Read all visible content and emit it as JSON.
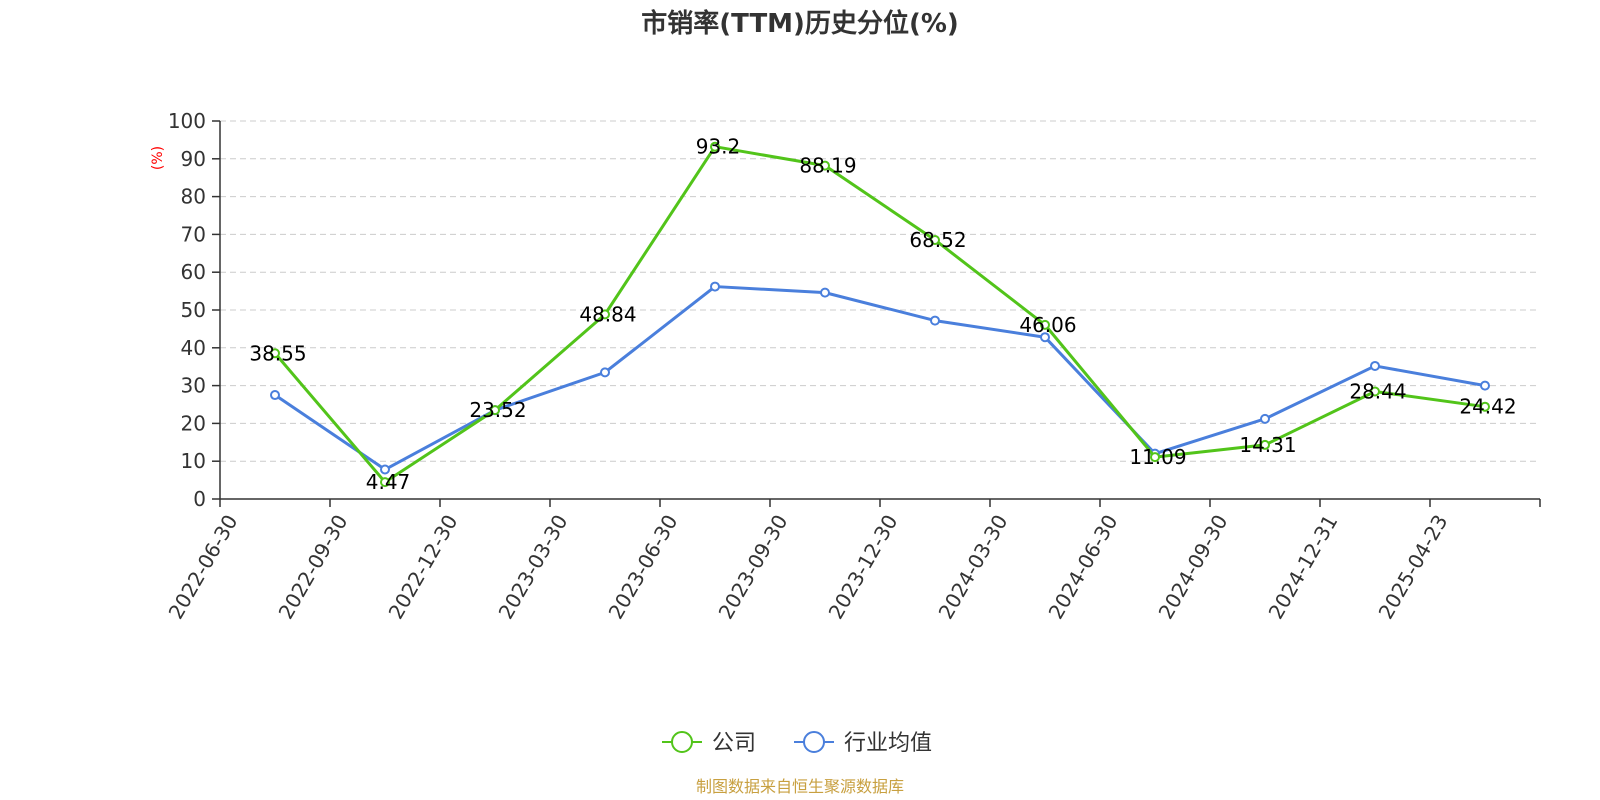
{
  "chart_data": {
    "type": "line",
    "title": "市销率(TTM)历史分位(%)",
    "ylabel": "(%)",
    "xlabel": "",
    "ylim": [
      0,
      100
    ],
    "yticks": [
      0,
      10,
      20,
      30,
      40,
      50,
      60,
      70,
      80,
      90,
      100
    ],
    "grid": true,
    "legend_position": "bottom-center",
    "categories": [
      "2022-06-30",
      "2022-09-30",
      "2022-12-30",
      "2023-03-30",
      "2023-06-30",
      "2023-09-30",
      "2023-12-30",
      "2024-03-30",
      "2024-06-30",
      "2024-09-30",
      "2024-12-31",
      "2025-04-23"
    ],
    "series": [
      {
        "name": "公司",
        "color": "#52c41a",
        "values": [
          38.55,
          4.47,
          23.52,
          48.84,
          93.2,
          88.19,
          68.52,
          46.06,
          11.09,
          14.31,
          28.44,
          24.42
        ],
        "data_labels": [
          "38.55",
          "4.47",
          "23.52",
          "48.84",
          "93.2",
          "88.19",
          "68.52",
          "46.06",
          "11.09",
          "14.31",
          "28.44",
          "24.42"
        ]
      },
      {
        "name": "行业均值",
        "color": "#4a7fdc",
        "values": [
          27.5,
          7.8,
          23.5,
          33.5,
          56.2,
          54.6,
          47.2,
          42.8,
          12.0,
          21.2,
          35.2,
          30.0
        ]
      }
    ],
    "source": "制图数据来自恒生聚源数据库"
  }
}
